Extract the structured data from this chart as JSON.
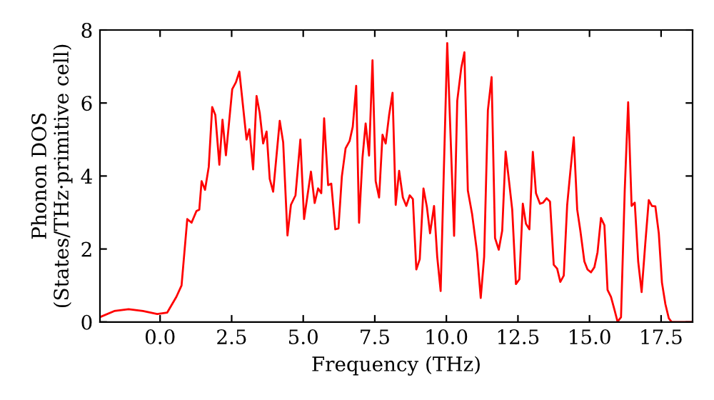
{
  "chart_data": {
    "type": "line",
    "xlabel": "Frequency (THz)",
    "ylabel": "Phonon DOS\n(States/THz·primitive cell)",
    "xlim": [
      -2.1,
      18.6
    ],
    "ylim": [
      0,
      8
    ],
    "xticks": [
      {
        "value": 0,
        "label": "0.0"
      },
      {
        "value": 2.5,
        "label": "2.5"
      },
      {
        "value": 5,
        "label": "5.0"
      },
      {
        "value": 7.5,
        "label": "7.5"
      },
      {
        "value": 10,
        "label": "10.0"
      },
      {
        "value": 12.5,
        "label": "12.5"
      },
      {
        "value": 15,
        "label": "15.0"
      },
      {
        "value": 17.5,
        "label": "17.5"
      }
    ],
    "yticks": [
      0,
      2,
      4,
      6,
      8
    ],
    "grid": false,
    "legend": false,
    "marker": "none",
    "line_style": "solid",
    "series": [
      {
        "color": "#ff0000",
        "x": [
          -2.05,
          -1.6,
          -1.1,
          -0.6,
          -0.1,
          0.25,
          0.57,
          0.75,
          0.95,
          1.1,
          1.27,
          1.37,
          1.45,
          1.57,
          1.7,
          1.82,
          1.93,
          2.07,
          2.18,
          2.3,
          2.52,
          2.65,
          2.77,
          3.02,
          3.12,
          3.25,
          3.37,
          3.48,
          3.6,
          3.72,
          3.83,
          3.95,
          4.18,
          4.3,
          4.45,
          4.57,
          4.73,
          4.9,
          5.03,
          5.27,
          5.4,
          5.52,
          5.63,
          5.73,
          5.87,
          5.98,
          6.12,
          6.23,
          6.35,
          6.48,
          6.62,
          6.73,
          6.85,
          6.95,
          7.07,
          7.18,
          7.3,
          7.42,
          7.53,
          7.65,
          7.77,
          7.88,
          8.0,
          8.12,
          8.23,
          8.35,
          8.48,
          8.6,
          8.72,
          8.83,
          8.95,
          9.07,
          9.2,
          9.32,
          9.43,
          9.57,
          9.68,
          9.8,
          10.03,
          10.15,
          10.27,
          10.38,
          10.52,
          10.63,
          10.75,
          10.9,
          11.07,
          11.2,
          11.32,
          11.45,
          11.58,
          11.7,
          11.83,
          11.95,
          12.07,
          12.18,
          12.3,
          12.43,
          12.55,
          12.67,
          12.78,
          12.9,
          13.02,
          13.13,
          13.27,
          13.38,
          13.5,
          13.62,
          13.75,
          13.87,
          13.98,
          14.1,
          14.22,
          14.33,
          14.45,
          14.57,
          14.68,
          14.82,
          14.93,
          15.05,
          15.17,
          15.28,
          15.4,
          15.52,
          15.63,
          15.75,
          15.87,
          15.98,
          16.1,
          16.23,
          16.35,
          16.47,
          16.58,
          16.7,
          16.82,
          16.95,
          17.07,
          17.18,
          17.3,
          17.42,
          17.53,
          17.65,
          17.77,
          17.87,
          18.6
        ],
        "values": [
          0.15,
          0.3,
          0.35,
          0.3,
          0.22,
          0.26,
          0.69,
          1.0,
          2.82,
          2.72,
          3.04,
          3.08,
          3.86,
          3.62,
          4.25,
          5.89,
          5.67,
          4.31,
          5.54,
          4.57,
          6.38,
          6.57,
          6.86,
          5.0,
          5.28,
          4.18,
          6.19,
          5.73,
          4.89,
          5.22,
          3.92,
          3.57,
          5.51,
          4.92,
          2.37,
          3.21,
          3.47,
          5.0,
          2.82,
          4.12,
          3.26,
          3.66,
          3.53,
          5.58,
          3.75,
          3.79,
          2.54,
          2.56,
          3.99,
          4.76,
          4.96,
          5.35,
          6.47,
          2.72,
          4.5,
          5.44,
          4.56,
          7.17,
          3.86,
          3.41,
          5.13,
          4.89,
          5.67,
          6.28,
          3.21,
          4.14,
          3.41,
          3.18,
          3.47,
          3.37,
          1.44,
          1.72,
          3.66,
          3.15,
          2.43,
          3.18,
          1.79,
          0.85,
          7.64,
          5.02,
          2.36,
          6.06,
          6.96,
          7.39,
          3.6,
          2.95,
          1.92,
          0.66,
          1.79,
          5.8,
          6.71,
          2.3,
          1.98,
          2.5,
          4.67,
          3.92,
          3.08,
          1.04,
          1.17,
          3.24,
          2.69,
          2.54,
          4.66,
          3.53,
          3.24,
          3.27,
          3.39,
          3.3,
          1.57,
          1.46,
          1.1,
          1.27,
          3.21,
          4.12,
          5.06,
          3.08,
          2.5,
          1.66,
          1.44,
          1.36,
          1.5,
          1.91,
          2.85,
          2.65,
          0.88,
          0.69,
          0.34,
          0.01,
          0.13,
          3.6,
          6.02,
          3.18,
          3.27,
          1.66,
          0.82,
          2.17,
          3.34,
          3.18,
          3.17,
          2.43,
          1.08,
          0.49,
          0.1,
          0,
          0
        ]
      }
    ]
  }
}
